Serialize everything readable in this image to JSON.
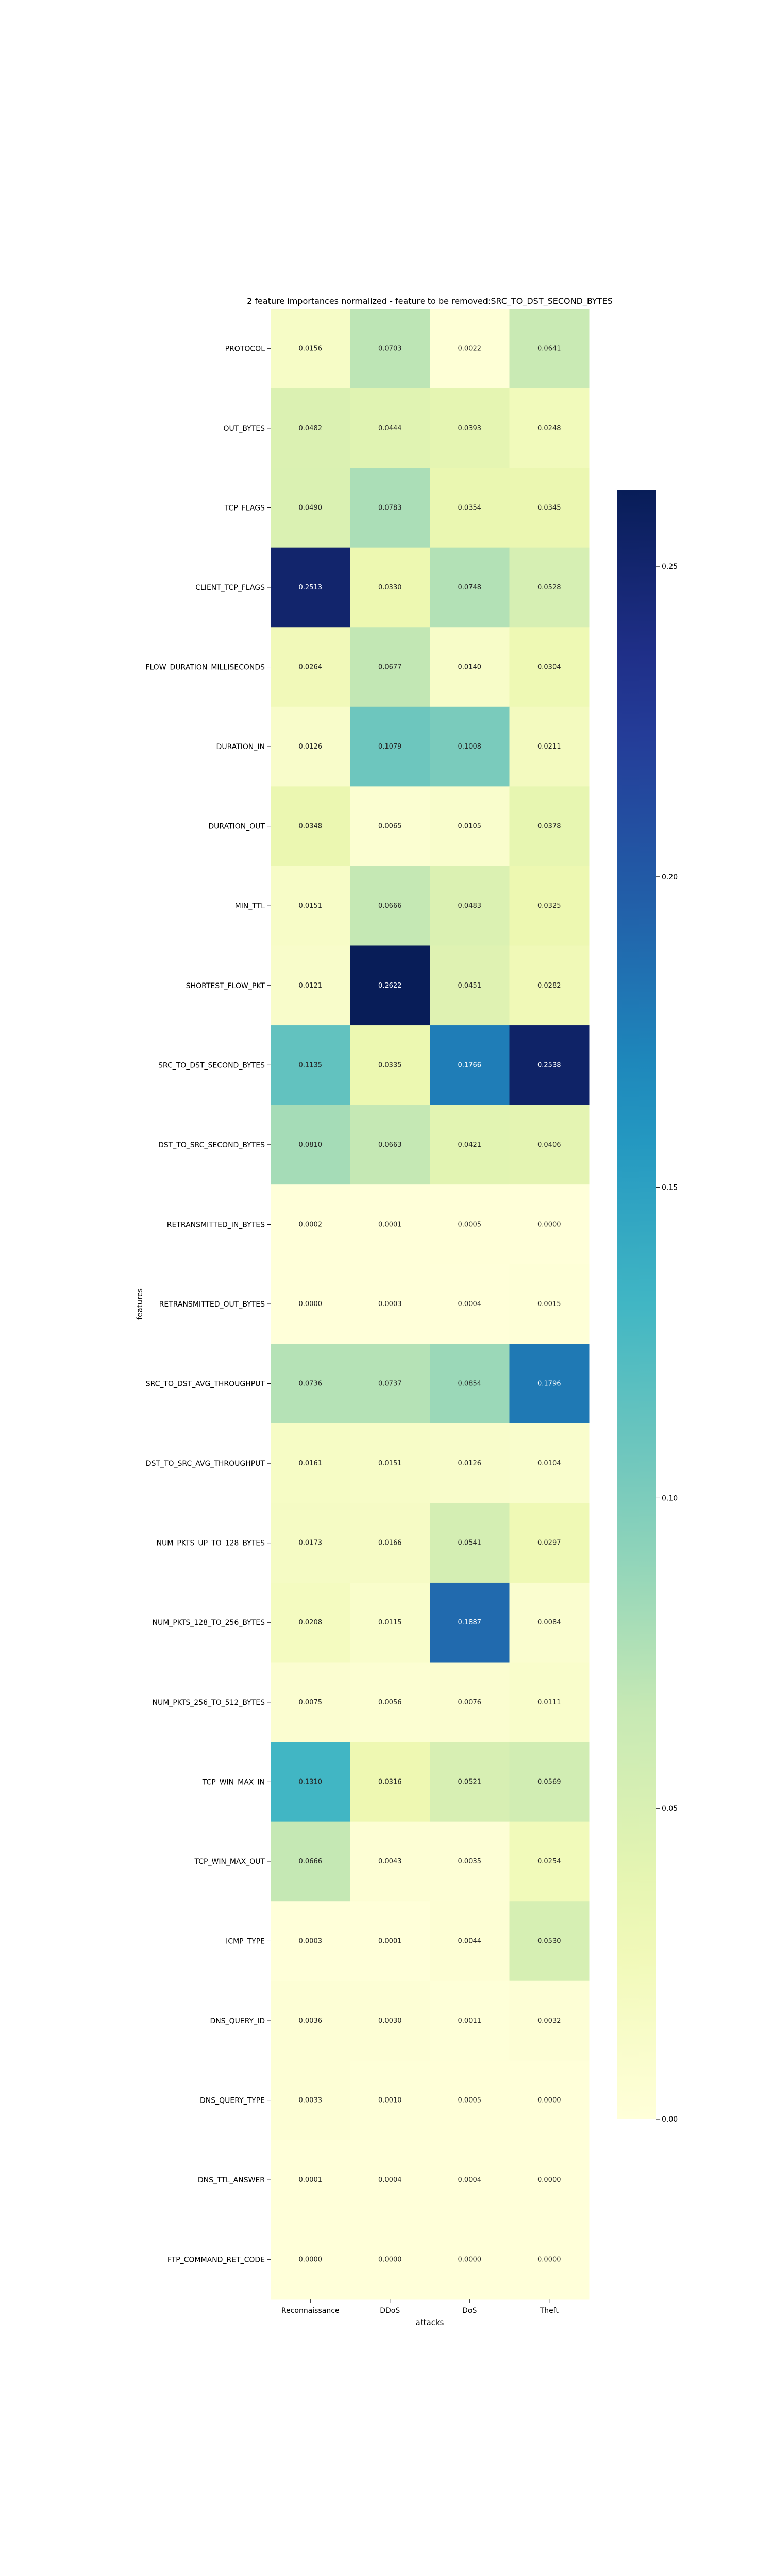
{
  "chart_data": {
    "type": "heatmap",
    "title": "2 feature importances normalized - feature to be removed:SRC_TO_DST_SECOND_BYTES",
    "xlabel": "attacks",
    "ylabel": "features",
    "x_categories": [
      "Reconnaissance",
      "DDoS",
      "DoS",
      "Theft"
    ],
    "y_categories": [
      "PROTOCOL",
      "OUT_BYTES",
      "TCP_FLAGS",
      "CLIENT_TCP_FLAGS",
      "FLOW_DURATION_MILLISECONDS",
      "DURATION_IN",
      "DURATION_OUT",
      "MIN_TTL",
      "SHORTEST_FLOW_PKT",
      "SRC_TO_DST_SECOND_BYTES",
      "DST_TO_SRC_SECOND_BYTES",
      "RETRANSMITTED_IN_BYTES",
      "RETRANSMITTED_OUT_BYTES",
      "SRC_TO_DST_AVG_THROUGHPUT",
      "DST_TO_SRC_AVG_THROUGHPUT",
      "NUM_PKTS_UP_TO_128_BYTES",
      "NUM_PKTS_128_TO_256_BYTES",
      "NUM_PKTS_256_TO_512_BYTES",
      "TCP_WIN_MAX_IN",
      "TCP_WIN_MAX_OUT",
      "ICMP_TYPE",
      "DNS_QUERY_ID",
      "DNS_QUERY_TYPE",
      "DNS_TTL_ANSWER",
      "FTP_COMMAND_RET_CODE"
    ],
    "values": [
      [
        0.0156,
        0.0703,
        0.0022,
        0.0641
      ],
      [
        0.0482,
        0.0444,
        0.0393,
        0.0248
      ],
      [
        0.049,
        0.0783,
        0.0354,
        0.0345
      ],
      [
        0.2513,
        0.033,
        0.0748,
        0.0528
      ],
      [
        0.0264,
        0.0677,
        0.014,
        0.0304
      ],
      [
        0.0126,
        0.1079,
        0.1008,
        0.0211
      ],
      [
        0.0348,
        0.0065,
        0.0105,
        0.0378
      ],
      [
        0.0151,
        0.0666,
        0.0483,
        0.0325
      ],
      [
        0.0121,
        0.2622,
        0.0451,
        0.0282
      ],
      [
        0.1135,
        0.0335,
        0.1766,
        0.2538
      ],
      [
        0.081,
        0.0663,
        0.0421,
        0.0406
      ],
      [
        0.0002,
        0.0001,
        0.0005,
        0.0
      ],
      [
        0.0,
        0.0003,
        0.0004,
        0.0015
      ],
      [
        0.0736,
        0.0737,
        0.0854,
        0.1796
      ],
      [
        0.0161,
        0.0151,
        0.0126,
        0.0104
      ],
      [
        0.0173,
        0.0166,
        0.0541,
        0.0297
      ],
      [
        0.0208,
        0.0115,
        0.1887,
        0.0084
      ],
      [
        0.0075,
        0.0056,
        0.0076,
        0.0111
      ],
      [
        0.131,
        0.0316,
        0.0521,
        0.0569
      ],
      [
        0.0666,
        0.0043,
        0.0035,
        0.0254
      ],
      [
        0.0003,
        0.0001,
        0.0044,
        0.053
      ],
      [
        0.0036,
        0.003,
        0.0011,
        0.0032
      ],
      [
        0.0033,
        0.001,
        0.0005,
        0.0
      ],
      [
        0.0001,
        0.0004,
        0.0004,
        0.0
      ],
      [
        0.0,
        0.0,
        0.0,
        0.0
      ]
    ],
    "colormap": "YlGnBu",
    "colorbar": {
      "range": [
        0.0,
        0.2622
      ],
      "ticks": [
        0.0,
        0.05,
        0.1,
        0.15,
        0.2,
        0.25
      ],
      "tick_labels": [
        "0.00",
        "0.05",
        "0.10",
        "0.15",
        "0.20",
        "0.25"
      ]
    }
  }
}
